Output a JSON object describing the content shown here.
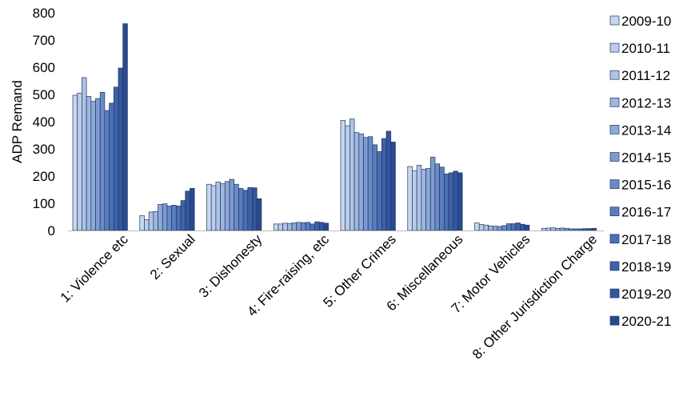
{
  "chart_data": {
    "type": "bar",
    "title": "",
    "xlabel": "",
    "ylabel": "ADP Remand",
    "ylim": [
      0,
      800
    ],
    "yticks": [
      0,
      100,
      200,
      300,
      400,
      500,
      600,
      700,
      800
    ],
    "grid": false,
    "legend_position": "right",
    "categories": [
      "1: Violence etc",
      "2: Sexual",
      "3: Dishonesty",
      "4: Fire-raising, etc",
      "5: Other Crimes",
      "6: Miscellaneous",
      "7: Motor Vehicles",
      "8: Other Jurisdiction Charge"
    ],
    "series": [
      {
        "name": "2009-10",
        "color": "#C9D7EE",
        "values": [
          497,
          55,
          170,
          24,
          405,
          235,
          28,
          8
        ]
      },
      {
        "name": "2010-11",
        "color": "#BCCDE9",
        "values": [
          505,
          40,
          165,
          24,
          385,
          220,
          22,
          9
        ]
      },
      {
        "name": "2011-12",
        "color": "#AFC3E4",
        "values": [
          562,
          68,
          178,
          27,
          410,
          240,
          20,
          10
        ]
      },
      {
        "name": "2012-13",
        "color": "#9FB6DD",
        "values": [
          493,
          70,
          172,
          26,
          360,
          225,
          17,
          8
        ]
      },
      {
        "name": "2013-14",
        "color": "#8EA9D7",
        "values": [
          475,
          96,
          180,
          28,
          355,
          228,
          16,
          9
        ]
      },
      {
        "name": "2014-15",
        "color": "#7D9BD0",
        "values": [
          485,
          98,
          188,
          30,
          342,
          270,
          15,
          8
        ]
      },
      {
        "name": "2015-16",
        "color": "#6A8BC6",
        "values": [
          508,
          90,
          170,
          29,
          345,
          245,
          18,
          6
        ]
      },
      {
        "name": "2016-17",
        "color": "#5A7DBE",
        "values": [
          441,
          93,
          155,
          30,
          315,
          233,
          25,
          6
        ]
      },
      {
        "name": "2017-18",
        "color": "#4B6FB4",
        "values": [
          468,
          90,
          148,
          24,
          290,
          208,
          25,
          6
        ]
      },
      {
        "name": "2018-19",
        "color": "#3E62A8",
        "values": [
          527,
          110,
          158,
          32,
          338,
          212,
          28,
          7
        ]
      },
      {
        "name": "2019-20",
        "color": "#33569C",
        "values": [
          597,
          145,
          157,
          30,
          365,
          218,
          23,
          7
        ]
      },
      {
        "name": "2020-21",
        "color": "#2A4A8F",
        "values": [
          760,
          155,
          117,
          27,
          325,
          212,
          20,
          8
        ]
      }
    ]
  }
}
